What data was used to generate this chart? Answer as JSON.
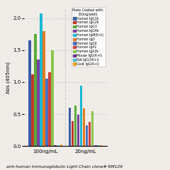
{
  "title": "anti-human Immunoglobulin Light Chain clone# RM129",
  "ylabel": "Abs (405nm)",
  "header": "Plate Coated with:\n(50ng/well)",
  "groups": [
    "100ng/mL",
    "20ng/mL"
  ],
  "series": [
    {
      "label": "Human IgG1k",
      "color": "#3a5ca8",
      "values": [
        1.65,
        0.6
      ]
    },
    {
      "label": "Human IgG2k",
      "color": "#c0392b",
      "values": [
        1.12,
        0.39
      ]
    },
    {
      "label": "Human IgG3",
      "color": "#5aaa3a",
      "values": [
        1.75,
        0.63
      ]
    },
    {
      "label": "Human IgG4k",
      "color": "#7b3fa0",
      "values": [
        1.35,
        0.49
      ]
    },
    {
      "label": "Human IgM(K+l)",
      "color": "#1ab8d4",
      "values": [
        2.07,
        0.95
      ]
    },
    {
      "label": "Human IgD",
      "color": "#e07b20",
      "values": [
        1.8,
        0.59
      ]
    },
    {
      "label": "Human IgGK",
      "color": "#4a6fc0",
      "values": [
        1.05,
        0.33
      ]
    },
    {
      "label": "Human IgA1",
      "color": "#d04040",
      "values": [
        1.15,
        0.38
      ]
    },
    {
      "label": "Human IgA2k",
      "color": "#8bc34a",
      "values": [
        1.5,
        0.55
      ]
    },
    {
      "label": "Mouse IgG(K+l)",
      "color": "#6a3090",
      "values": [
        0.02,
        0.01
      ]
    },
    {
      "label": "Rat IgG(2K+l)",
      "color": "#40bcd8",
      "values": [
        0.02,
        0.01
      ]
    },
    {
      "label": "Goat IgG(K+l)",
      "color": "#f0a030",
      "values": [
        0.03,
        0.02
      ]
    }
  ],
  "ylim": [
    0.0,
    2.15
  ],
  "yticks": [
    0.0,
    0.5,
    1.0,
    1.5,
    2.0
  ],
  "background_color": "#f0ede8",
  "grid_color": "#cccccc"
}
